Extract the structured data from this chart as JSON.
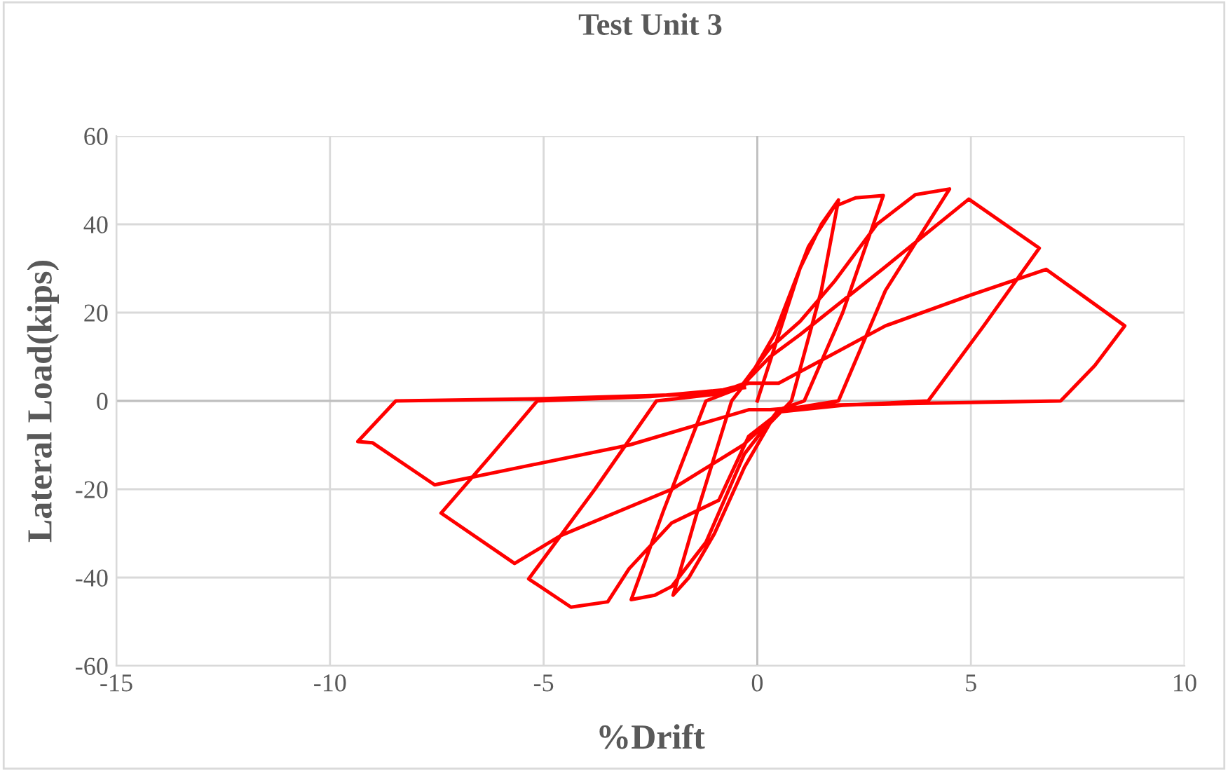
{
  "chart_data": {
    "type": "line",
    "title": "Test Unit 3",
    "xlabel": "%Drift",
    "ylabel": "Lateral Load(kips)",
    "xlim": [
      -15,
      10
    ],
    "xticks": [
      -15,
      -10,
      -5,
      0,
      5,
      10
    ],
    "ylim": [
      -60,
      60
    ],
    "yticks": [
      -60,
      -40,
      -20,
      0,
      20,
      40,
      60
    ],
    "grid": true,
    "marker": "none",
    "line_style": "solid",
    "series": [
      {
        "color": "#ff0000",
        "x": [
          0,
          0.4,
          1.0,
          1.5,
          1.9,
          1.5,
          0.8,
          0.3,
          -0.3,
          -1.0,
          -1.6,
          -1.97,
          -1.4,
          -0.6,
          -0.2,
          0.4,
          1.2,
          1.8,
          2.3,
          2.95,
          2.0,
          1.1,
          0.5,
          -0.3,
          -1.2,
          -2.0,
          -2.4,
          -2.95,
          -2.2,
          -1.2,
          -0.4,
          0.3,
          1.0,
          1.8,
          2.8,
          3.7,
          4.5,
          3.0,
          1.9,
          0.6,
          -0.2,
          -0.9,
          -2.0,
          -3.0,
          -3.5,
          -4.36,
          -5.35,
          -3.8,
          -2.36,
          -1.0,
          -0.3,
          0.3,
          1.0,
          2.95,
          4.95,
          6.6,
          5.3,
          4.0,
          2.0,
          0.5,
          -0.33,
          -2.0,
          -4.6,
          -5.68,
          -7.4,
          -6.2,
          -5.15,
          -2.5,
          -0.8,
          -0.2,
          0.5,
          3.0,
          5.0,
          6.76,
          8.6,
          7.9,
          7.1,
          4.0,
          1.5,
          0.3,
          -0.2,
          -3.0,
          -7.55,
          -9.0,
          -9.35,
          -8.46,
          -5.0,
          -1.5,
          -0.3
        ],
        "values": [
          0,
          12,
          30,
          40,
          45.5,
          25,
          0,
          -5,
          -15,
          -30,
          -40,
          -44,
          -25,
          0,
          5,
          15,
          35,
          44,
          46,
          46.5,
          20,
          0,
          -2,
          -12,
          -32,
          -42,
          -44,
          -45,
          -25,
          0,
          3,
          12,
          18,
          27,
          40,
          46.7,
          48,
          25,
          0,
          -2,
          -8,
          -22.5,
          -27.6,
          -38,
          -45.5,
          -46.7,
          -40.3,
          -20,
          0,
          1.5,
          4,
          10,
          15,
          30,
          45.7,
          34.6,
          17,
          0,
          -1,
          -2.5,
          -10,
          -20,
          -30.5,
          -36.8,
          -25.4,
          -12,
          0,
          1,
          2.5,
          4,
          4,
          17,
          24,
          29.8,
          17,
          8,
          0,
          -0.5,
          -1,
          -2,
          -2,
          -10,
          -19,
          -9.5,
          -9.2,
          0,
          0.5,
          1.5,
          3
        ]
      }
    ]
  }
}
